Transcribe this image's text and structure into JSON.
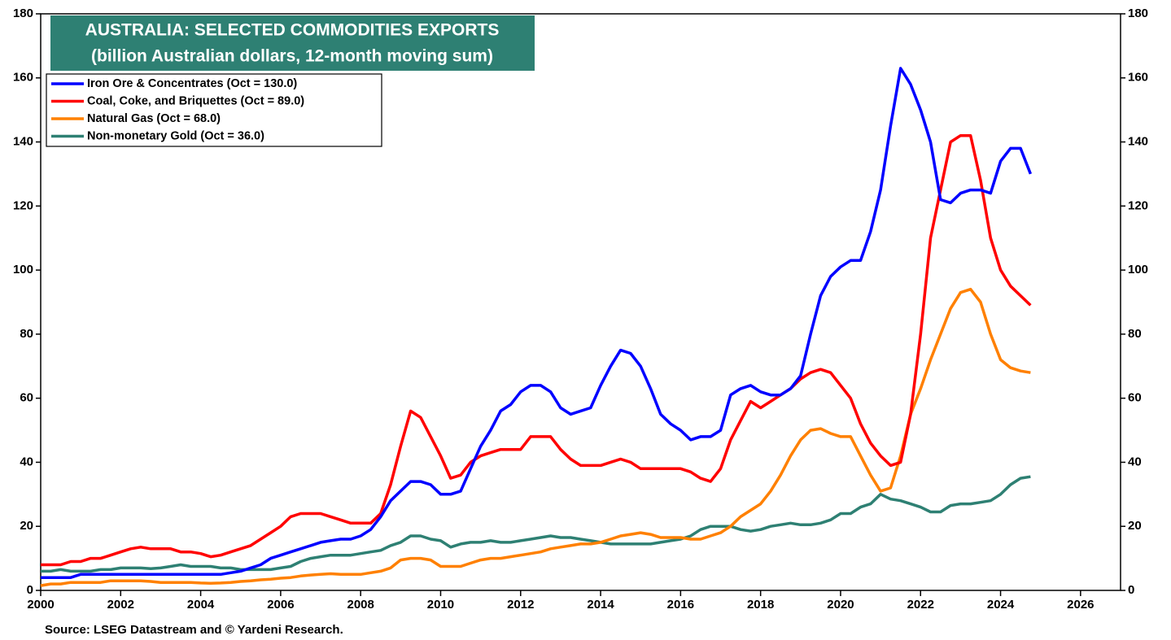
{
  "chart_data": {
    "type": "line",
    "title": "AUSTRALIA: SELECTED COMMODITIES EXPORTS",
    "subtitle": "(billion Australian dollars, 12-month moving sum)",
    "source": "Source: LSEG Datastream and © Yardeni Research.",
    "xlim": [
      2000,
      2027
    ],
    "xticks": [
      2000,
      2002,
      2004,
      2006,
      2008,
      2010,
      2012,
      2014,
      2016,
      2018,
      2020,
      2022,
      2024,
      2026
    ],
    "ylim": [
      0,
      180
    ],
    "yticks": [
      0,
      20,
      40,
      60,
      80,
      100,
      120,
      140,
      160,
      180
    ],
    "y2lim": [
      0,
      180
    ],
    "y2ticks": [
      0,
      20,
      40,
      60,
      80,
      100,
      120,
      140,
      160,
      180
    ],
    "legend": "upper left",
    "x": [
      2000,
      2000.25,
      2000.5,
      2000.75,
      2001,
      2001.25,
      2001.5,
      2001.75,
      2002,
      2002.25,
      2002.5,
      2002.75,
      2003,
      2003.25,
      2003.5,
      2003.75,
      2004,
      2004.25,
      2004.5,
      2004.75,
      2005,
      2005.25,
      2005.5,
      2005.75,
      2006,
      2006.25,
      2006.5,
      2006.75,
      2007,
      2007.25,
      2007.5,
      2007.75,
      2008,
      2008.25,
      2008.5,
      2008.75,
      2009,
      2009.25,
      2009.5,
      2009.75,
      2010,
      2010.25,
      2010.5,
      2010.75,
      2011,
      2011.25,
      2011.5,
      2011.75,
      2012,
      2012.25,
      2012.5,
      2012.75,
      2013,
      2013.25,
      2013.5,
      2013.75,
      2014,
      2014.25,
      2014.5,
      2014.75,
      2015,
      2015.25,
      2015.5,
      2015.75,
      2016,
      2016.25,
      2016.5,
      2016.75,
      2017,
      2017.25,
      2017.5,
      2017.75,
      2018,
      2018.25,
      2018.5,
      2018.75,
      2019,
      2019.25,
      2019.5,
      2019.75,
      2020,
      2020.25,
      2020.5,
      2020.75,
      2021,
      2021.25,
      2021.5,
      2021.75,
      2022,
      2022.25,
      2022.5,
      2022.75,
      2023,
      2023.25,
      2023.5,
      2023.75,
      2024,
      2024.25,
      2024.5,
      2024.75
    ],
    "series": [
      {
        "name": "Iron Ore & Concentrates (Oct = 130.0)",
        "color": "#0000ff",
        "values": [
          4,
          4,
          4,
          4,
          5,
          5,
          5,
          5,
          5,
          5,
          5,
          5,
          5,
          5,
          5,
          5,
          5,
          5,
          5,
          5.5,
          6,
          7,
          8,
          10,
          11,
          12,
          13,
          14,
          15,
          15.5,
          16,
          16,
          17,
          19,
          23,
          28,
          31,
          34,
          34,
          33,
          30,
          30,
          31,
          38,
          45,
          50,
          56,
          58,
          62,
          64,
          64,
          62,
          57,
          55,
          56,
          57,
          64,
          70,
          75,
          74,
          70,
          63,
          55,
          52,
          50,
          47,
          48,
          48,
          50,
          61,
          63,
          64,
          62,
          61,
          61,
          63,
          67,
          80,
          92,
          98,
          101,
          103,
          103,
          112,
          125,
          145,
          163,
          158,
          150,
          140,
          122,
          121,
          124,
          125,
          125,
          124,
          134,
          138,
          138,
          130
        ]
      },
      {
        "name": "Coal, Coke, and Briquettes (Oct = 89.0)",
        "color": "#ff0000",
        "values": [
          8,
          8,
          8,
          9,
          9,
          10,
          10,
          11,
          12,
          13,
          13.5,
          13,
          13,
          13,
          12,
          12,
          11.5,
          10.5,
          11,
          12,
          13,
          14,
          16,
          18,
          20,
          23,
          24,
          24,
          24,
          23,
          22,
          21,
          21,
          21,
          24,
          33,
          45,
          56,
          54,
          48,
          42,
          35,
          36,
          40,
          42,
          43,
          44,
          44,
          44,
          48,
          48,
          48,
          44,
          41,
          39,
          39,
          39,
          40,
          41,
          40,
          38,
          38,
          38,
          38,
          38,
          37,
          35,
          34,
          38,
          47,
          53,
          59,
          57,
          59,
          61,
          63,
          66,
          68,
          69,
          68,
          64,
          60,
          52,
          46,
          42,
          39,
          40,
          55,
          80,
          110,
          125,
          140,
          142,
          142,
          128,
          110,
          100,
          95,
          92,
          89
        ]
      },
      {
        "name": "Natural Gas (Oct = 68.0)",
        "color": "#ff8000",
        "values": [
          1.5,
          2,
          2,
          2.5,
          2.5,
          2.5,
          2.5,
          3,
          3,
          3,
          3,
          2.8,
          2.5,
          2.5,
          2.5,
          2.5,
          2.3,
          2.2,
          2.3,
          2.5,
          2.8,
          3,
          3.3,
          3.5,
          3.8,
          4,
          4.5,
          4.8,
          5,
          5.2,
          5,
          5,
          5,
          5.5,
          6,
          7,
          9.5,
          10,
          10,
          9.5,
          7.5,
          7.5,
          7.5,
          8.5,
          9.5,
          10,
          10,
          10.5,
          11,
          11.5,
          12,
          13,
          13.5,
          14,
          14.5,
          14.5,
          15,
          16,
          17,
          17.5,
          18,
          17.5,
          16.5,
          16.5,
          16.5,
          16,
          16,
          17,
          18,
          20,
          23,
          25,
          27,
          31,
          36,
          42,
          47,
          50,
          50.5,
          49,
          48,
          48,
          42,
          36,
          31,
          32,
          42,
          55,
          63,
          72,
          80,
          88,
          93,
          94,
          90,
          80,
          72,
          69.5,
          68.5,
          68
        ]
      },
      {
        "name": "Non-monetary Gold (Oct = 36.0)",
        "color": "#2e8073",
        "values": [
          6,
          6,
          6.5,
          6,
          6,
          6,
          6.5,
          6.5,
          7,
          7,
          7,
          6.8,
          7,
          7.5,
          8,
          7.5,
          7.5,
          7.5,
          7,
          7,
          6.5,
          6.5,
          6.5,
          6.5,
          7,
          7.5,
          9,
          10,
          10.5,
          11,
          11,
          11,
          11.5,
          12,
          12.5,
          14,
          15,
          17,
          17,
          16,
          15.5,
          13.5,
          14.5,
          15,
          15,
          15.5,
          15,
          15,
          15.5,
          16,
          16.5,
          17,
          16.5,
          16.5,
          16,
          15.5,
          15,
          14.5,
          14.5,
          14.5,
          14.5,
          14.5,
          15,
          15.5,
          16,
          17,
          19,
          20,
          20,
          20,
          19,
          18.5,
          19,
          20,
          20.5,
          21,
          20.5,
          20.5,
          21,
          22,
          24,
          24,
          26,
          27,
          30,
          28.5,
          28,
          27,
          26,
          24.5,
          24.5,
          26.5,
          27,
          27,
          27.5,
          28,
          30,
          33,
          35,
          35.5
        ]
      }
    ]
  }
}
